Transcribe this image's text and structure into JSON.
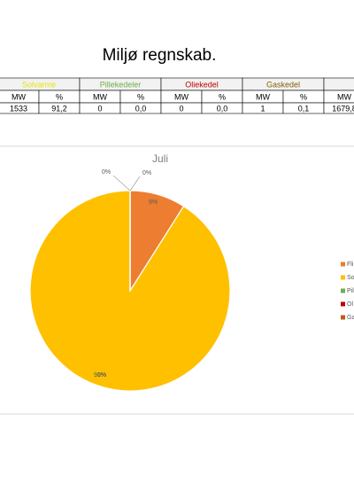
{
  "header": {
    "title": "Miljø regnskab."
  },
  "table": {
    "groups": [
      {
        "label": "Solvarme",
        "color": "#e6e600"
      },
      {
        "label": "Pillekedeler",
        "color": "#70ad47"
      },
      {
        "label": "Oliekedel",
        "color": "#c00000"
      },
      {
        "label": "Gaskedel",
        "color": "#806000"
      }
    ],
    "subheaders": [
      "MW",
      "%",
      "MW",
      "%",
      "MW",
      "%",
      "MW",
      "%",
      "MW"
    ],
    "row": [
      "1533",
      "91,2",
      "0",
      "0,0",
      "0",
      "0,0",
      "1",
      "0,1",
      "1679,8"
    ]
  },
  "chart_data": {
    "type": "pie",
    "title": "Juli",
    "categories": [
      "Fli",
      "So",
      "Pil",
      "Ol",
      "Ga"
    ],
    "values": [
      9,
      91,
      0,
      0,
      0
    ],
    "value_labels": [
      "9%",
      "91%",
      "0%",
      "0%",
      "0%"
    ],
    "colors": [
      "#ed7d31",
      "#ffc000",
      "#70ad47",
      "#c00000",
      "#c55a11"
    ]
  }
}
